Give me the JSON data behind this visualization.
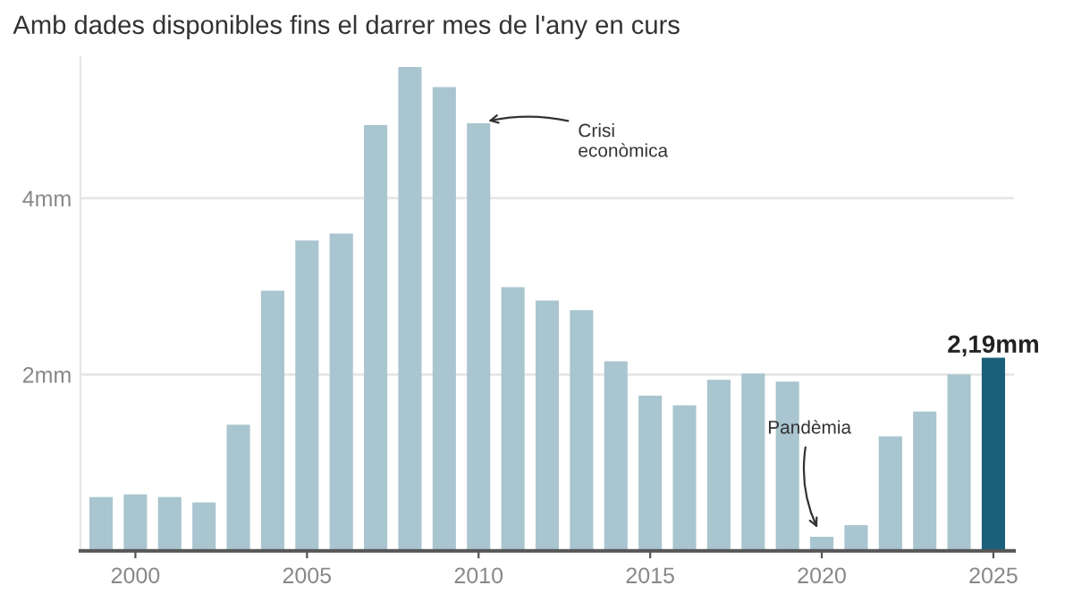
{
  "chart_data": {
    "type": "bar",
    "title": "Amb dades disponibles fins el darrer mes de l'any en curs",
    "x": [
      1999,
      2000,
      2001,
      2002,
      2003,
      2004,
      2005,
      2006,
      2007,
      2008,
      2009,
      2010,
      2011,
      2012,
      2013,
      2014,
      2015,
      2016,
      2017,
      2018,
      2019,
      2020,
      2021,
      2022,
      2023,
      2024,
      2025
    ],
    "values": [
      0.61,
      0.64,
      0.61,
      0.55,
      1.43,
      2.95,
      3.52,
      3.6,
      4.83,
      5.49,
      5.26,
      4.85,
      2.99,
      2.84,
      2.73,
      2.15,
      1.76,
      1.65,
      1.94,
      2.01,
      1.92,
      0.16,
      0.29,
      1.3,
      1.58,
      2.0,
      2.19
    ],
    "colors": [
      "#a9c5cf",
      "#a9c5cf",
      "#a9c5cf",
      "#a9c5cf",
      "#a9c5cf",
      "#a9c5cf",
      "#a9c5cf",
      "#a9c5cf",
      "#a9c5cf",
      "#a9c5cf",
      "#a9c5cf",
      "#a9c5cf",
      "#a9c5cf",
      "#a9c5cf",
      "#a9c5cf",
      "#a9c5cf",
      "#a9c5cf",
      "#a9c5cf",
      "#a9c5cf",
      "#a9c5cf",
      "#a9c5cf",
      "#a9c5cf",
      "#a9c5cf",
      "#a9c5cf",
      "#a9c5cf",
      "#a9c5cf",
      "#1a6079"
    ],
    "value_labels": [
      null,
      null,
      null,
      null,
      null,
      null,
      null,
      null,
      null,
      null,
      null,
      null,
      null,
      null,
      null,
      null,
      null,
      null,
      null,
      null,
      null,
      null,
      null,
      null,
      null,
      null,
      "2,19mm"
    ],
    "annotations": [
      {
        "text": "Crisi\neconòmica",
        "x": 2010,
        "y": 4.85
      },
      {
        "text": "Pandèmia",
        "x": 2020,
        "y": 0.16
      }
    ],
    "xlim": [
      1998.4,
      2025.6
    ],
    "xticks": [
      2000,
      2005,
      2010,
      2015,
      2020,
      2025
    ],
    "ylim": [
      0,
      5.6
    ],
    "yticks": [
      {
        "value": 0,
        "label": null
      },
      {
        "value": 2,
        "label": "2mm"
      },
      {
        "value": 4,
        "label": "4mm"
      }
    ],
    "grid": "y"
  }
}
